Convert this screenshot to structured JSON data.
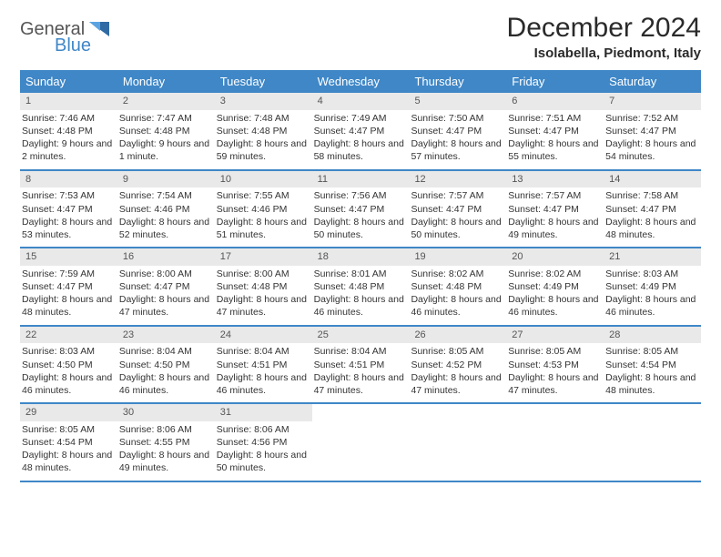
{
  "brand": {
    "text1": "General",
    "text2": "Blue",
    "color1": "#555555",
    "color2": "#3f87c7"
  },
  "title": "December 2024",
  "location": "Isolabella, Piedmont, Italy",
  "header_bg": "#3f87c7",
  "daynum_bg": "#e9e9e9",
  "week_border": "#3f87c7",
  "dow": [
    "Sunday",
    "Monday",
    "Tuesday",
    "Wednesday",
    "Thursday",
    "Friday",
    "Saturday"
  ],
  "weeks": [
    [
      {
        "n": "1",
        "sunrise": "7:46 AM",
        "sunset": "4:48 PM",
        "day": "9 hours and 2 minutes."
      },
      {
        "n": "2",
        "sunrise": "7:47 AM",
        "sunset": "4:48 PM",
        "day": "9 hours and 1 minute."
      },
      {
        "n": "3",
        "sunrise": "7:48 AM",
        "sunset": "4:48 PM",
        "day": "8 hours and 59 minutes."
      },
      {
        "n": "4",
        "sunrise": "7:49 AM",
        "sunset": "4:47 PM",
        "day": "8 hours and 58 minutes."
      },
      {
        "n": "5",
        "sunrise": "7:50 AM",
        "sunset": "4:47 PM",
        "day": "8 hours and 57 minutes."
      },
      {
        "n": "6",
        "sunrise": "7:51 AM",
        "sunset": "4:47 PM",
        "day": "8 hours and 55 minutes."
      },
      {
        "n": "7",
        "sunrise": "7:52 AM",
        "sunset": "4:47 PM",
        "day": "8 hours and 54 minutes."
      }
    ],
    [
      {
        "n": "8",
        "sunrise": "7:53 AM",
        "sunset": "4:47 PM",
        "day": "8 hours and 53 minutes."
      },
      {
        "n": "9",
        "sunrise": "7:54 AM",
        "sunset": "4:46 PM",
        "day": "8 hours and 52 minutes."
      },
      {
        "n": "10",
        "sunrise": "7:55 AM",
        "sunset": "4:46 PM",
        "day": "8 hours and 51 minutes."
      },
      {
        "n": "11",
        "sunrise": "7:56 AM",
        "sunset": "4:47 PM",
        "day": "8 hours and 50 minutes."
      },
      {
        "n": "12",
        "sunrise": "7:57 AM",
        "sunset": "4:47 PM",
        "day": "8 hours and 50 minutes."
      },
      {
        "n": "13",
        "sunrise": "7:57 AM",
        "sunset": "4:47 PM",
        "day": "8 hours and 49 minutes."
      },
      {
        "n": "14",
        "sunrise": "7:58 AM",
        "sunset": "4:47 PM",
        "day": "8 hours and 48 minutes."
      }
    ],
    [
      {
        "n": "15",
        "sunrise": "7:59 AM",
        "sunset": "4:47 PM",
        "day": "8 hours and 48 minutes."
      },
      {
        "n": "16",
        "sunrise": "8:00 AM",
        "sunset": "4:47 PM",
        "day": "8 hours and 47 minutes."
      },
      {
        "n": "17",
        "sunrise": "8:00 AM",
        "sunset": "4:48 PM",
        "day": "8 hours and 47 minutes."
      },
      {
        "n": "18",
        "sunrise": "8:01 AM",
        "sunset": "4:48 PM",
        "day": "8 hours and 46 minutes."
      },
      {
        "n": "19",
        "sunrise": "8:02 AM",
        "sunset": "4:48 PM",
        "day": "8 hours and 46 minutes."
      },
      {
        "n": "20",
        "sunrise": "8:02 AM",
        "sunset": "4:49 PM",
        "day": "8 hours and 46 minutes."
      },
      {
        "n": "21",
        "sunrise": "8:03 AM",
        "sunset": "4:49 PM",
        "day": "8 hours and 46 minutes."
      }
    ],
    [
      {
        "n": "22",
        "sunrise": "8:03 AM",
        "sunset": "4:50 PM",
        "day": "8 hours and 46 minutes."
      },
      {
        "n": "23",
        "sunrise": "8:04 AM",
        "sunset": "4:50 PM",
        "day": "8 hours and 46 minutes."
      },
      {
        "n": "24",
        "sunrise": "8:04 AM",
        "sunset": "4:51 PM",
        "day": "8 hours and 46 minutes."
      },
      {
        "n": "25",
        "sunrise": "8:04 AM",
        "sunset": "4:51 PM",
        "day": "8 hours and 47 minutes."
      },
      {
        "n": "26",
        "sunrise": "8:05 AM",
        "sunset": "4:52 PM",
        "day": "8 hours and 47 minutes."
      },
      {
        "n": "27",
        "sunrise": "8:05 AM",
        "sunset": "4:53 PM",
        "day": "8 hours and 47 minutes."
      },
      {
        "n": "28",
        "sunrise": "8:05 AM",
        "sunset": "4:54 PM",
        "day": "8 hours and 48 minutes."
      }
    ],
    [
      {
        "n": "29",
        "sunrise": "8:05 AM",
        "sunset": "4:54 PM",
        "day": "8 hours and 48 minutes."
      },
      {
        "n": "30",
        "sunrise": "8:06 AM",
        "sunset": "4:55 PM",
        "day": "8 hours and 49 minutes."
      },
      {
        "n": "31",
        "sunrise": "8:06 AM",
        "sunset": "4:56 PM",
        "day": "8 hours and 50 minutes."
      },
      null,
      null,
      null,
      null
    ]
  ]
}
